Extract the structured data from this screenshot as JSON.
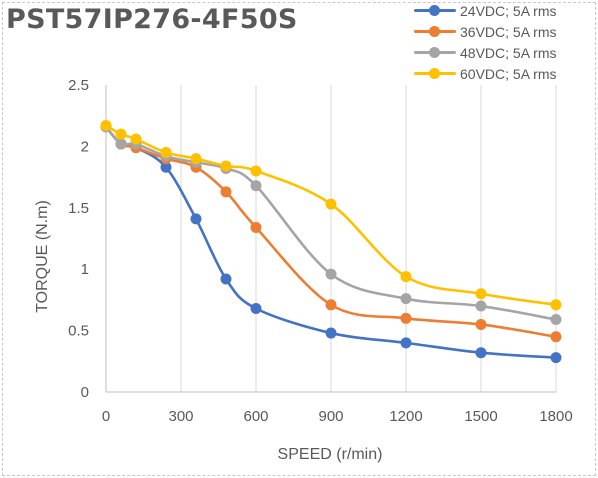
{
  "chart_data": {
    "type": "line",
    "title": "PST57IP276-4F50S",
    "xlabel": "SPEED (r/min)",
    "ylabel": "TORQUE (N.m)",
    "xlim": [
      0,
      1800
    ],
    "ylim": [
      0,
      2.5
    ],
    "xticks": [
      "0",
      "300",
      "600",
      "900",
      "1200",
      "1500",
      "1800"
    ],
    "yticks": [
      "0",
      "0.5",
      "1",
      "1.5",
      "2",
      "2.5"
    ],
    "grid": "vertical",
    "legend": "top-right",
    "series": [
      {
        "name": "24VDC; 5A rms",
        "color": "#4472C4",
        "x": [
          0,
          60,
          120,
          240,
          360,
          480,
          600,
          900,
          1200,
          1500,
          1800
        ],
        "y": [
          2.16,
          2.02,
          1.99,
          1.83,
          1.41,
          0.92,
          0.68,
          0.48,
          0.4,
          0.32,
          0.28
        ]
      },
      {
        "name": "36VDC; 5A rms",
        "color": "#ED7D31",
        "x": [
          0,
          60,
          120,
          240,
          360,
          480,
          600,
          900,
          1200,
          1500,
          1800
        ],
        "y": [
          2.16,
          2.02,
          1.99,
          1.9,
          1.83,
          1.63,
          1.34,
          0.71,
          0.6,
          0.55,
          0.45
        ]
      },
      {
        "name": "48VDC; 5A rms",
        "color": "#A5A5A5",
        "x": [
          0,
          60,
          120,
          240,
          360,
          480,
          600,
          900,
          1200,
          1500,
          1800
        ],
        "y": [
          2.16,
          2.02,
          2.02,
          1.92,
          1.87,
          1.82,
          1.68,
          0.96,
          0.76,
          0.7,
          0.59
        ]
      },
      {
        "name": "60VDC; 5A rms",
        "color": "#FFC000",
        "x": [
          0,
          60,
          120,
          240,
          360,
          480,
          600,
          900,
          1200,
          1500,
          1800
        ],
        "y": [
          2.17,
          2.1,
          2.06,
          1.95,
          1.9,
          1.84,
          1.8,
          1.53,
          0.94,
          0.8,
          0.71
        ]
      }
    ]
  }
}
